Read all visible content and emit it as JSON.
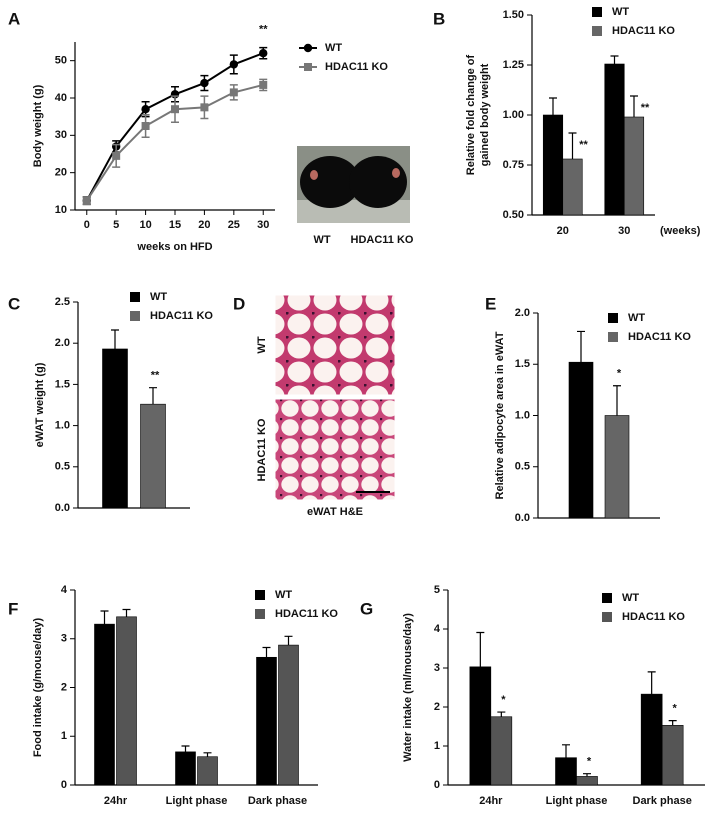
{
  "chart_data": [
    {
      "panel_label": "A",
      "type": "line",
      "x": [
        0,
        5,
        10,
        15,
        20,
        25,
        30
      ],
      "xlim": [
        -2,
        32
      ],
      "xticks": [
        0,
        5,
        10,
        15,
        20,
        25,
        30
      ],
      "ylim": [
        10,
        55
      ],
      "yticks": [
        10,
        20,
        30,
        40,
        50
      ],
      "xlabel": "weeks on HFD",
      "ylabel": [
        "Body weight (g)"
      ],
      "series": [
        {
          "name": "WT",
          "color": "#000000",
          "marker": "circle",
          "values": [
            12.5,
            27,
            37,
            41,
            44,
            49,
            52
          ],
          "errors": [
            1,
            1.5,
            2,
            2,
            2,
            2.5,
            1.5
          ]
        },
        {
          "name": "HDAC11 KO",
          "color": "#777777",
          "marker": "square",
          "values": [
            12.5,
            24.5,
            32.5,
            37,
            37.5,
            41.5,
            43.5
          ],
          "errors": [
            1,
            3,
            3,
            3.5,
            3,
            2,
            1.5
          ]
        }
      ],
      "annotations": [
        {
          "x": 30,
          "series": 0,
          "text": "**"
        }
      ],
      "photo_labels": [
        "WT",
        "HDAC11 KO"
      ]
    },
    {
      "panel_label": "B",
      "type": "bar",
      "categories": [
        "20",
        "30"
      ],
      "xunit": "(weeks)",
      "ylim": [
        0.5,
        1.5
      ],
      "yticks": [
        {
          "value": 0.5,
          "label": "0.50"
        },
        {
          "value": 0.75,
          "label": "0.75"
        },
        {
          "value": 1.0,
          "label": "1.00"
        },
        {
          "value": 1.25,
          "label": "1.25"
        },
        {
          "value": 1.5,
          "label": "1.50"
        }
      ],
      "ylabel": [
        "Relative fold change of",
        "gained body weight"
      ],
      "series": [
        {
          "name": "WT",
          "color": "#000000",
          "values": [
            1.0,
            1.255
          ],
          "errors": [
            0.085,
            0.04
          ],
          "significance": [
            null,
            null
          ]
        },
        {
          "name": "HDAC11 KO",
          "color": "#666666",
          "values": [
            0.78,
            0.99
          ],
          "errors": [
            0.13,
            0.105
          ],
          "significance": [
            "**",
            "**"
          ]
        }
      ]
    },
    {
      "panel_label": "C",
      "type": "bar",
      "categories": [
        null
      ],
      "ylim": [
        0,
        2.5
      ],
      "yticks": [
        {
          "value": 0,
          "label": "0.0"
        },
        {
          "value": 0.5,
          "label": "0.5"
        },
        {
          "value": 1,
          "label": "1.0"
        },
        {
          "value": 1.5,
          "label": "1.5"
        },
        {
          "value": 2,
          "label": "2.0"
        },
        {
          "value": 2.5,
          "label": "2.5"
        }
      ],
      "ylabel": [
        "eWAT weight (g)"
      ],
      "series": [
        {
          "name": "WT",
          "color": "#000000",
          "values": [
            1.93
          ],
          "errors": [
            0.23
          ],
          "significance": [
            null
          ]
        },
        {
          "name": "HDAC11 KO",
          "color": "#666666",
          "values": [
            1.26
          ],
          "errors": [
            0.2
          ],
          "significance": [
            "**"
          ]
        }
      ]
    },
    {
      "panel_label": "E",
      "type": "bar",
      "categories": [
        null
      ],
      "ylim": [
        0,
        2
      ],
      "yticks": [
        {
          "value": 0,
          "label": "0.0"
        },
        {
          "value": 0.5,
          "label": "0.5"
        },
        {
          "value": 1,
          "label": "1.0"
        },
        {
          "value": 1.5,
          "label": "1.5"
        },
        {
          "value": 2,
          "label": "2.0"
        }
      ],
      "ylabel": [
        "Relative adipocyte area in eWAT"
      ],
      "series": [
        {
          "name": "WT",
          "color": "#000000",
          "values": [
            1.52
          ],
          "errors": [
            0.3
          ],
          "significance": [
            null
          ]
        },
        {
          "name": "HDAC11 KO",
          "color": "#666666",
          "values": [
            1.0
          ],
          "errors": [
            0.29
          ],
          "significance": [
            "*"
          ]
        }
      ]
    },
    {
      "panel_label": "F",
      "type": "bar",
      "categories": [
        "24hr",
        "Light phase",
        "Dark phase"
      ],
      "ylim": [
        0,
        4
      ],
      "yticks": [
        0,
        1,
        2,
        3,
        4
      ],
      "ylabel": [
        "Food intake (g/mouse/day)"
      ],
      "series": [
        {
          "name": "WT",
          "color": "#000000",
          "values": [
            3.3,
            0.68,
            2.62
          ],
          "errors": [
            0.27,
            0.12,
            0.2
          ],
          "significance": [
            null,
            null,
            null
          ]
        },
        {
          "name": "HDAC11 KO",
          "color": "#555555",
          "values": [
            3.45,
            0.58,
            2.87
          ],
          "errors": [
            0.15,
            0.08,
            0.18
          ],
          "significance": [
            null,
            null,
            null
          ]
        }
      ]
    },
    {
      "panel_label": "G",
      "type": "bar",
      "categories": [
        "24hr",
        "Light phase",
        "Dark phase"
      ],
      "ylim": [
        0,
        5
      ],
      "yticks": [
        0,
        1,
        2,
        3,
        4,
        5
      ],
      "ylabel": [
        "Water intake (ml/mouse/day)"
      ],
      "series": [
        {
          "name": "WT",
          "color": "#000000",
          "values": [
            3.03,
            0.7,
            2.33
          ],
          "errors": [
            0.88,
            0.33,
            0.57
          ],
          "significance": [
            null,
            null,
            null
          ]
        },
        {
          "name": "HDAC11 KO",
          "color": "#555555",
          "values": [
            1.75,
            0.22,
            1.53
          ],
          "errors": [
            0.12,
            0.07,
            0.12
          ],
          "significance": [
            "*",
            "*",
            "*"
          ]
        }
      ]
    }
  ],
  "image_panel": {
    "panel_label": "D",
    "row_labels": [
      "WT",
      "HDAC11 KO"
    ],
    "caption": "eWAT H&E"
  }
}
